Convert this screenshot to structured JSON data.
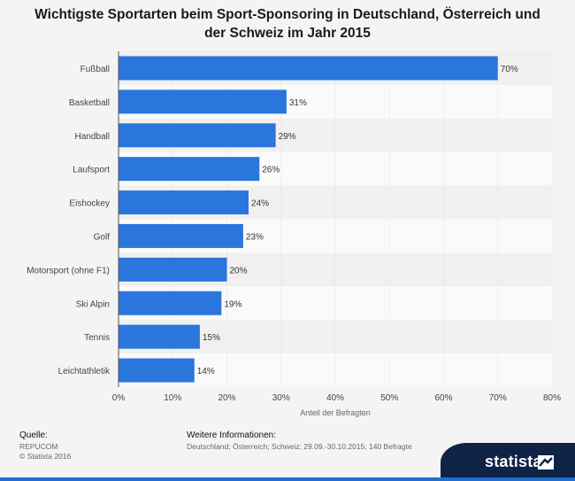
{
  "title_line1": "Wichtigste Sportarten beim Sport-Sponsoring in Deutschland, Österreich und",
  "title_line2": "der Schweiz im Jahr 2015",
  "chart_data": {
    "type": "bar",
    "orientation": "horizontal",
    "categories": [
      "Fußball",
      "Basketball",
      "Handball",
      "Laufsport",
      "Eishockey",
      "Golf",
      "Motorsport (ohne F1)",
      "Ski Alpin",
      "Tennis",
      "Leichtathletik"
    ],
    "values": [
      70,
      31,
      29,
      26,
      24,
      23,
      20,
      19,
      15,
      14
    ],
    "value_labels": [
      "70%",
      "31%",
      "29%",
      "26%",
      "24%",
      "23%",
      "20%",
      "19%",
      "15%",
      "14%"
    ],
    "xlim": [
      0,
      80
    ],
    "x_ticks": [
      "0%",
      "10%",
      "20%",
      "30%",
      "40%",
      "50%",
      "60%",
      "70%",
      "80%"
    ],
    "xlabel": "Anteil der Befragten",
    "bar_color": "#2a76dd",
    "grid": true
  },
  "footer": {
    "source_heading": "Quelle:",
    "source_name": "REPUCOM",
    "copyright": "© Statista 2016",
    "info_heading": "Weitere Informationen:",
    "info_text": "Deutschland; Österreich; Schweiz; 29.09.-30.10.2015; 140 Befragte"
  },
  "brand": {
    "name": "statista",
    "icon": "statista-logo-icon"
  }
}
